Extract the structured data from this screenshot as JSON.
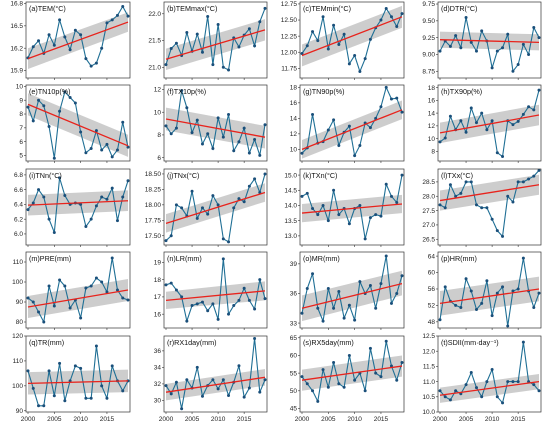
{
  "colors": {
    "line": "#1f6f95",
    "marker": "#1a4f7a",
    "trend": "#e8231c",
    "band": "#c4c4c4",
    "frame": "#333333",
    "background": "#ffffff"
  },
  "chart_data": [
    {
      "type": "line",
      "title": "(a)TEM(°C)",
      "years": [
        2000,
        2019
      ],
      "ylim": [
        15.8,
        16.82
      ],
      "yticks": [
        15.9,
        16.2,
        16.5,
        16.8
      ],
      "ytick_labels": [
        "15.9",
        "16.2",
        "16.5",
        "16.8"
      ],
      "values": [
        16.07,
        16.22,
        16.3,
        16.13,
        16.38,
        16.24,
        16.58,
        16.35,
        16.18,
        16.44,
        16.38,
        16.06,
        15.96,
        16.0,
        16.2,
        16.54,
        16.58,
        16.64,
        16.76,
        16.63
      ],
      "trend": [
        16.06,
        16.55
      ],
      "band_lo": [
        15.92,
        16.42
      ],
      "band_hi": [
        16.2,
        16.68
      ]
    },
    {
      "type": "line",
      "title": "(b)TEMmax(°C)",
      "years": [
        2000,
        2019
      ],
      "ylim": [
        20.8,
        22.22
      ],
      "yticks": [
        21.0,
        21.5,
        22.0
      ],
      "ytick_labels": [
        "21.0",
        "21.5",
        "22.0"
      ],
      "values": [
        21.05,
        21.35,
        21.45,
        21.22,
        21.65,
        21.3,
        21.62,
        21.28,
        21.95,
        21.05,
        21.8,
        21.0,
        20.95,
        21.55,
        21.38,
        21.6,
        21.72,
        21.4,
        21.85,
        22.1
      ],
      "trend": [
        21.15,
        21.7
      ],
      "band_lo": [
        20.95,
        21.5
      ],
      "band_hi": [
        21.35,
        21.9
      ]
    },
    {
      "type": "line",
      "title": "(c)TEMmin(°C)",
      "years": [
        2000,
        2019
      ],
      "ylim": [
        11.6,
        12.78
      ],
      "yticks": [
        11.75,
        12.0,
        12.25,
        12.5,
        12.75
      ],
      "ytick_labels": [
        "11.75",
        "12.00",
        "12.25",
        "12.50",
        "12.75"
      ],
      "values": [
        11.98,
        12.1,
        12.32,
        12.18,
        12.55,
        12.05,
        12.42,
        12.12,
        12.28,
        11.82,
        11.95,
        11.7,
        11.9,
        12.2,
        12.38,
        12.5,
        12.68,
        12.55,
        12.4,
        12.6
      ],
      "trend": [
        11.95,
        12.55
      ],
      "band_lo": [
        11.78,
        12.38
      ],
      "band_hi": [
        12.12,
        12.72
      ]
    },
    {
      "type": "line",
      "title": "(d)DTR(°C)",
      "years": [
        2000,
        2019
      ],
      "ylim": [
        8.65,
        9.78
      ],
      "yticks": [
        8.75,
        9.0,
        9.25,
        9.5,
        9.75
      ],
      "ytick_labels": [
        "8.75",
        "9.00",
        "9.25",
        "9.50",
        "9.75"
      ],
      "values": [
        9.05,
        9.2,
        9.12,
        9.28,
        9.1,
        9.55,
        9.18,
        9.05,
        9.35,
        9.2,
        8.8,
        9.05,
        9.1,
        9.3,
        8.75,
        8.85,
        9.15,
        9.0,
        9.4,
        9.25
      ],
      "trend": [
        9.22,
        9.18
      ],
      "band_lo": [
        9.1,
        9.06
      ],
      "band_hi": [
        9.34,
        9.3
      ]
    },
    {
      "type": "line",
      "title": "(e)TN10p(%)",
      "years": [
        2000,
        2019
      ],
      "ylim": [
        4.6,
        10.1
      ],
      "yticks": [
        5,
        6,
        7,
        8,
        9,
        10
      ],
      "ytick_labels": [
        "5",
        "6",
        "7",
        "8",
        "9",
        "10"
      ],
      "values": [
        8.5,
        7.5,
        9.0,
        8.6,
        7.1,
        4.8,
        8.2,
        9.6,
        9.2,
        8.8,
        6.7,
        5.2,
        5.5,
        6.8,
        5.4,
        5.8,
        4.9,
        5.4,
        7.4,
        5.6
      ],
      "trend": [
        8.7,
        5.7
      ],
      "band_lo": [
        7.9,
        4.9
      ],
      "band_hi": [
        9.5,
        6.5
      ]
    },
    {
      "type": "line",
      "title": "(f)TX10p(%)",
      "years": [
        2000,
        2019
      ],
      "ylim": [
        5.7,
        12.4
      ],
      "yticks": [
        6,
        8,
        10,
        12
      ],
      "ytick_labels": [
        "6",
        "8",
        "10",
        "12"
      ],
      "values": [
        8.8,
        8.1,
        8.6,
        11.9,
        10.4,
        8.2,
        9.3,
        7.2,
        8.1,
        6.8,
        9.5,
        7.8,
        9.8,
        6.6,
        7.4,
        8.6,
        6.4,
        7.6,
        6.2,
        8.9
      ],
      "trend": [
        9.4,
        7.8
      ],
      "band_lo": [
        8.4,
        6.8
      ],
      "band_hi": [
        10.4,
        8.8
      ]
    },
    {
      "type": "line",
      "title": "(g)TN90p(%)",
      "years": [
        2000,
        2019
      ],
      "ylim": [
        8.5,
        18.3
      ],
      "yticks": [
        10,
        12,
        14,
        16,
        18
      ],
      "ytick_labels": [
        "10",
        "12",
        "14",
        "16",
        "18"
      ],
      "values": [
        9.5,
        10.2,
        14.5,
        10.8,
        11.0,
        12.5,
        13.8,
        10.5,
        12.2,
        13.0,
        9.2,
        10.5,
        13.4,
        12.8,
        14.0,
        15.5,
        18.0,
        16.5,
        16.6,
        14.8
      ],
      "trend": [
        10.0,
        15.1
      ],
      "band_lo": [
        8.8,
        13.9
      ],
      "band_hi": [
        11.2,
        16.3
      ]
    },
    {
      "type": "line",
      "title": "(h)TX90p(%)",
      "years": [
        2000,
        2019
      ],
      "ylim": [
        6.5,
        18.4
      ],
      "yticks": [
        8,
        10,
        12,
        14,
        16,
        18
      ],
      "ytick_labels": [
        "8",
        "10",
        "12",
        "14",
        "16",
        "18"
      ],
      "values": [
        9.5,
        10.1,
        13.5,
        11.4,
        12.8,
        11.0,
        14.8,
        12.5,
        14.0,
        11.4,
        12.8,
        7.8,
        7.2,
        12.8,
        12.2,
        12.7,
        13.8,
        15.0,
        14.5,
        17.6
      ],
      "trend": [
        10.9,
        13.7
      ],
      "band_lo": [
        9.3,
        12.1
      ],
      "band_hi": [
        12.5,
        15.3
      ]
    },
    {
      "type": "line",
      "title": "(i)TNn(°C)",
      "years": [
        2000,
        2019
      ],
      "ylim": [
        5.85,
        6.88
      ],
      "yticks": [
        6.0,
        6.2,
        6.4,
        6.6,
        6.8
      ],
      "ytick_labels": [
        "6.0",
        "6.2",
        "6.4",
        "6.6",
        "6.8"
      ],
      "values": [
        6.33,
        6.42,
        6.6,
        6.5,
        6.2,
        6.02,
        6.76,
        6.52,
        6.4,
        6.42,
        6.4,
        6.1,
        6.2,
        6.38,
        6.5,
        6.47,
        6.62,
        6.18,
        6.5,
        6.72
      ],
      "trend": [
        6.39,
        6.45
      ],
      "band_lo": [
        6.25,
        6.31
      ],
      "band_hi": [
        6.53,
        6.59
      ]
    },
    {
      "type": "line",
      "title": "(j)TNx(°C)",
      "years": [
        2000,
        2019
      ],
      "ylim": [
        17.35,
        18.58
      ],
      "yticks": [
        17.5,
        17.75,
        18.0,
        18.25,
        18.5
      ],
      "ytick_labels": [
        "17.50",
        "17.75",
        "18.00",
        "18.25",
        "18.50"
      ],
      "values": [
        17.42,
        17.5,
        18.0,
        17.95,
        17.82,
        18.22,
        17.78,
        17.95,
        17.85,
        18.15,
        18.0,
        17.45,
        17.4,
        17.95,
        18.1,
        18.05,
        18.3,
        18.42,
        18.2,
        18.5
      ],
      "trend": [
        17.7,
        18.2
      ],
      "band_lo": [
        17.55,
        18.05
      ],
      "band_hi": [
        17.85,
        18.35
      ]
    },
    {
      "type": "line",
      "title": "(k)TXn(°C)",
      "years": [
        2000,
        2019
      ],
      "ylim": [
        12.7,
        15.2
      ],
      "yticks": [
        13.0,
        13.5,
        14.0,
        14.5,
        15.0
      ],
      "ytick_labels": [
        "13.0",
        "13.5",
        "14.0",
        "14.5",
        "15.0"
      ],
      "values": [
        14.3,
        14.4,
        13.9,
        13.7,
        14.0,
        13.5,
        14.5,
        13.7,
        13.9,
        13.4,
        13.9,
        14.0,
        12.9,
        13.6,
        13.7,
        13.65,
        14.7,
        14.3,
        14.1,
        15.0
      ],
      "trend": [
        13.75,
        14.05
      ],
      "band_lo": [
        13.45,
        13.75
      ],
      "band_hi": [
        14.05,
        14.35
      ]
    },
    {
      "type": "line",
      "title": "(l)TXx(°C)",
      "years": [
        2000,
        2019
      ],
      "ylim": [
        26.3,
        28.95
      ],
      "yticks": [
        26.5,
        27.0,
        27.5,
        28.0,
        28.5,
        29.0
      ],
      "ytick_labels": [
        "26.5",
        "27.0",
        "27.5",
        "28.0",
        "28.5",
        "29.0"
      ],
      "values": [
        27.7,
        27.6,
        28.4,
        28.0,
        28.1,
        28.5,
        28.5,
        27.7,
        27.6,
        27.6,
        27.2,
        26.8,
        26.6,
        28.0,
        27.8,
        28.5,
        28.5,
        28.6,
        28.7,
        28.9
      ],
      "trend": [
        27.85,
        28.4
      ],
      "band_lo": [
        27.5,
        28.05
      ],
      "band_hi": [
        28.2,
        28.75
      ]
    },
    {
      "type": "line",
      "title": "(m)PRE(mm)",
      "years": [
        2000,
        2019
      ],
      "ylim": [
        77,
        115
      ],
      "yticks": [
        80,
        90,
        100,
        110
      ],
      "ytick_labels": [
        "80",
        "90",
        "100",
        "110"
      ],
      "values": [
        92,
        90,
        85,
        80,
        98,
        88,
        101,
        98,
        87,
        91,
        82,
        97,
        98,
        102,
        100,
        95,
        112,
        96,
        92,
        91
      ],
      "trend": [
        87.5,
        96.0
      ],
      "band_lo": [
        82,
        90.5
      ],
      "band_hi": [
        93,
        101.5
      ]
    },
    {
      "type": "line",
      "title": "(n)LR(mm)",
      "years": [
        2000,
        2019
      ],
      "ylim": [
        15.2,
        19.6
      ],
      "yticks": [
        16,
        17,
        18,
        19
      ],
      "ytick_labels": [
        "16",
        "17",
        "18",
        "19"
      ],
      "values": [
        17.7,
        17.8,
        17.4,
        17.0,
        15.6,
        16.5,
        16.6,
        16.7,
        16.2,
        16.6,
        15.7,
        19.2,
        16.0,
        16.5,
        16.8,
        17.5,
        16.8,
        16.3,
        18.0,
        16.9
      ],
      "trend": [
        16.8,
        17.35
      ],
      "band_lo": [
        16.3,
        16.8
      ],
      "band_hi": [
        17.3,
        17.9
      ]
    },
    {
      "type": "line",
      "title": "(o)MR(mm)",
      "years": [
        2000,
        2019
      ],
      "ylim": [
        32.5,
        40.2
      ],
      "yticks": [
        33,
        36,
        39
      ],
      "ytick_labels": [
        "33",
        "36",
        "39"
      ],
      "values": [
        34.0,
        36.5,
        38.0,
        34.5,
        33.2,
        36.5,
        34.5,
        36.2,
        33.5,
        34.8,
        33.3,
        37.2,
        36.0,
        36.8,
        34.5,
        37.0,
        39.8,
        35.0,
        36.0,
        37.8
      ],
      "trend": [
        34.5,
        37.0
      ],
      "band_lo": [
        33.2,
        35.8
      ],
      "band_hi": [
        35.8,
        38.3
      ]
    },
    {
      "type": "line",
      "title": "(p)HR(mm)",
      "years": [
        2000,
        2019
      ],
      "ylim": [
        46.5,
        65
      ],
      "yticks": [
        48,
        52,
        56,
        60,
        64
      ],
      "ytick_labels": [
        "48",
        "52",
        "56",
        "60",
        "64"
      ],
      "values": [
        48.5,
        56.5,
        53.0,
        52.0,
        51.5,
        58.5,
        55.5,
        51.0,
        52.5,
        58.0,
        49.5,
        55.0,
        56.5,
        47.0,
        55.5,
        56.0,
        63.5,
        55.5,
        51.5,
        55.0
      ],
      "trend": [
        52.5,
        56.0
      ],
      "band_lo": [
        49.5,
        53.0
      ],
      "band_hi": [
        55.5,
        59.0
      ]
    },
    {
      "type": "line",
      "title": "(q)TR(mm)",
      "years": [
        2000,
        2019
      ],
      "ylim": [
        89.5,
        120
      ],
      "yticks": [
        90,
        100,
        110,
        120
      ],
      "ytick_labels": [
        "90",
        "100",
        "110",
        "120"
      ],
      "values": [
        106,
        99,
        92,
        92,
        106,
        96,
        109,
        94,
        102,
        108,
        107,
        95,
        95,
        116,
        100,
        95,
        108,
        102,
        98,
        102
      ],
      "trend": [
        101.0,
        102.0
      ],
      "band_lo": [
        96.5,
        97.5
      ],
      "band_hi": [
        105.5,
        106.5
      ]
    },
    {
      "type": "line",
      "title": "(r)RX1day(mm)",
      "years": [
        2000,
        2019
      ],
      "ylim": [
        28.6,
        37.8
      ],
      "yticks": [
        30,
        32,
        34,
        36
      ],
      "ytick_labels": [
        "30",
        "32",
        "34",
        "36"
      ],
      "values": [
        31.8,
        30.8,
        32.2,
        29.0,
        32.5,
        31.5,
        34.0,
        30.5,
        31.8,
        32.5,
        31.4,
        32.5,
        30.6,
        32.2,
        34.2,
        30.4,
        31.5,
        37.5,
        31.0,
        32.5
      ],
      "trend": [
        31.0,
        32.8
      ],
      "band_lo": [
        30.0,
        31.8
      ],
      "band_hi": [
        32.0,
        33.8
      ]
    },
    {
      "type": "line",
      "title": "(s)RX5day(mm)",
      "years": [
        2000,
        2019
      ],
      "ylim": [
        44,
        65.5
      ],
      "yticks": [
        45,
        50,
        55,
        60,
        65
      ],
      "ytick_labels": [
        "45",
        "50",
        "55",
        "60",
        "65"
      ],
      "values": [
        54,
        52,
        50,
        47,
        56,
        51,
        58,
        52,
        51,
        60,
        53,
        55,
        50,
        62,
        55,
        54,
        64,
        57,
        53,
        58
      ],
      "trend": [
        53.0,
        57.0
      ],
      "band_lo": [
        50.0,
        54.0
      ],
      "band_hi": [
        56.0,
        60.0
      ]
    },
    {
      "type": "line",
      "title": "(t)SDII(mm·day⁻¹)",
      "years": [
        2000,
        2019
      ],
      "ylim": [
        10.0,
        12.5
      ],
      "yticks": [
        10.0,
        10.5,
        11.0,
        11.5,
        12.0,
        12.5
      ],
      "ytick_labels": [
        "10.0",
        "10.5",
        "11.0",
        "11.5",
        "12.0",
        "12.5"
      ],
      "values": [
        10.7,
        10.5,
        10.4,
        10.7,
        10.6,
        10.9,
        11.3,
        10.8,
        10.5,
        11.0,
        11.4,
        10.5,
        10.3,
        11.0,
        11.0,
        11.0,
        12.3,
        11.0,
        10.9,
        10.7
      ],
      "trend": [
        10.55,
        11.0
      ],
      "band_lo": [
        10.3,
        10.75
      ],
      "band_hi": [
        10.8,
        11.25
      ]
    }
  ],
  "x_axis": {
    "ticks": [
      2000,
      2005,
      2010,
      2015
    ],
    "labels": [
      "2000",
      "2005",
      "2010",
      "2015"
    ]
  }
}
